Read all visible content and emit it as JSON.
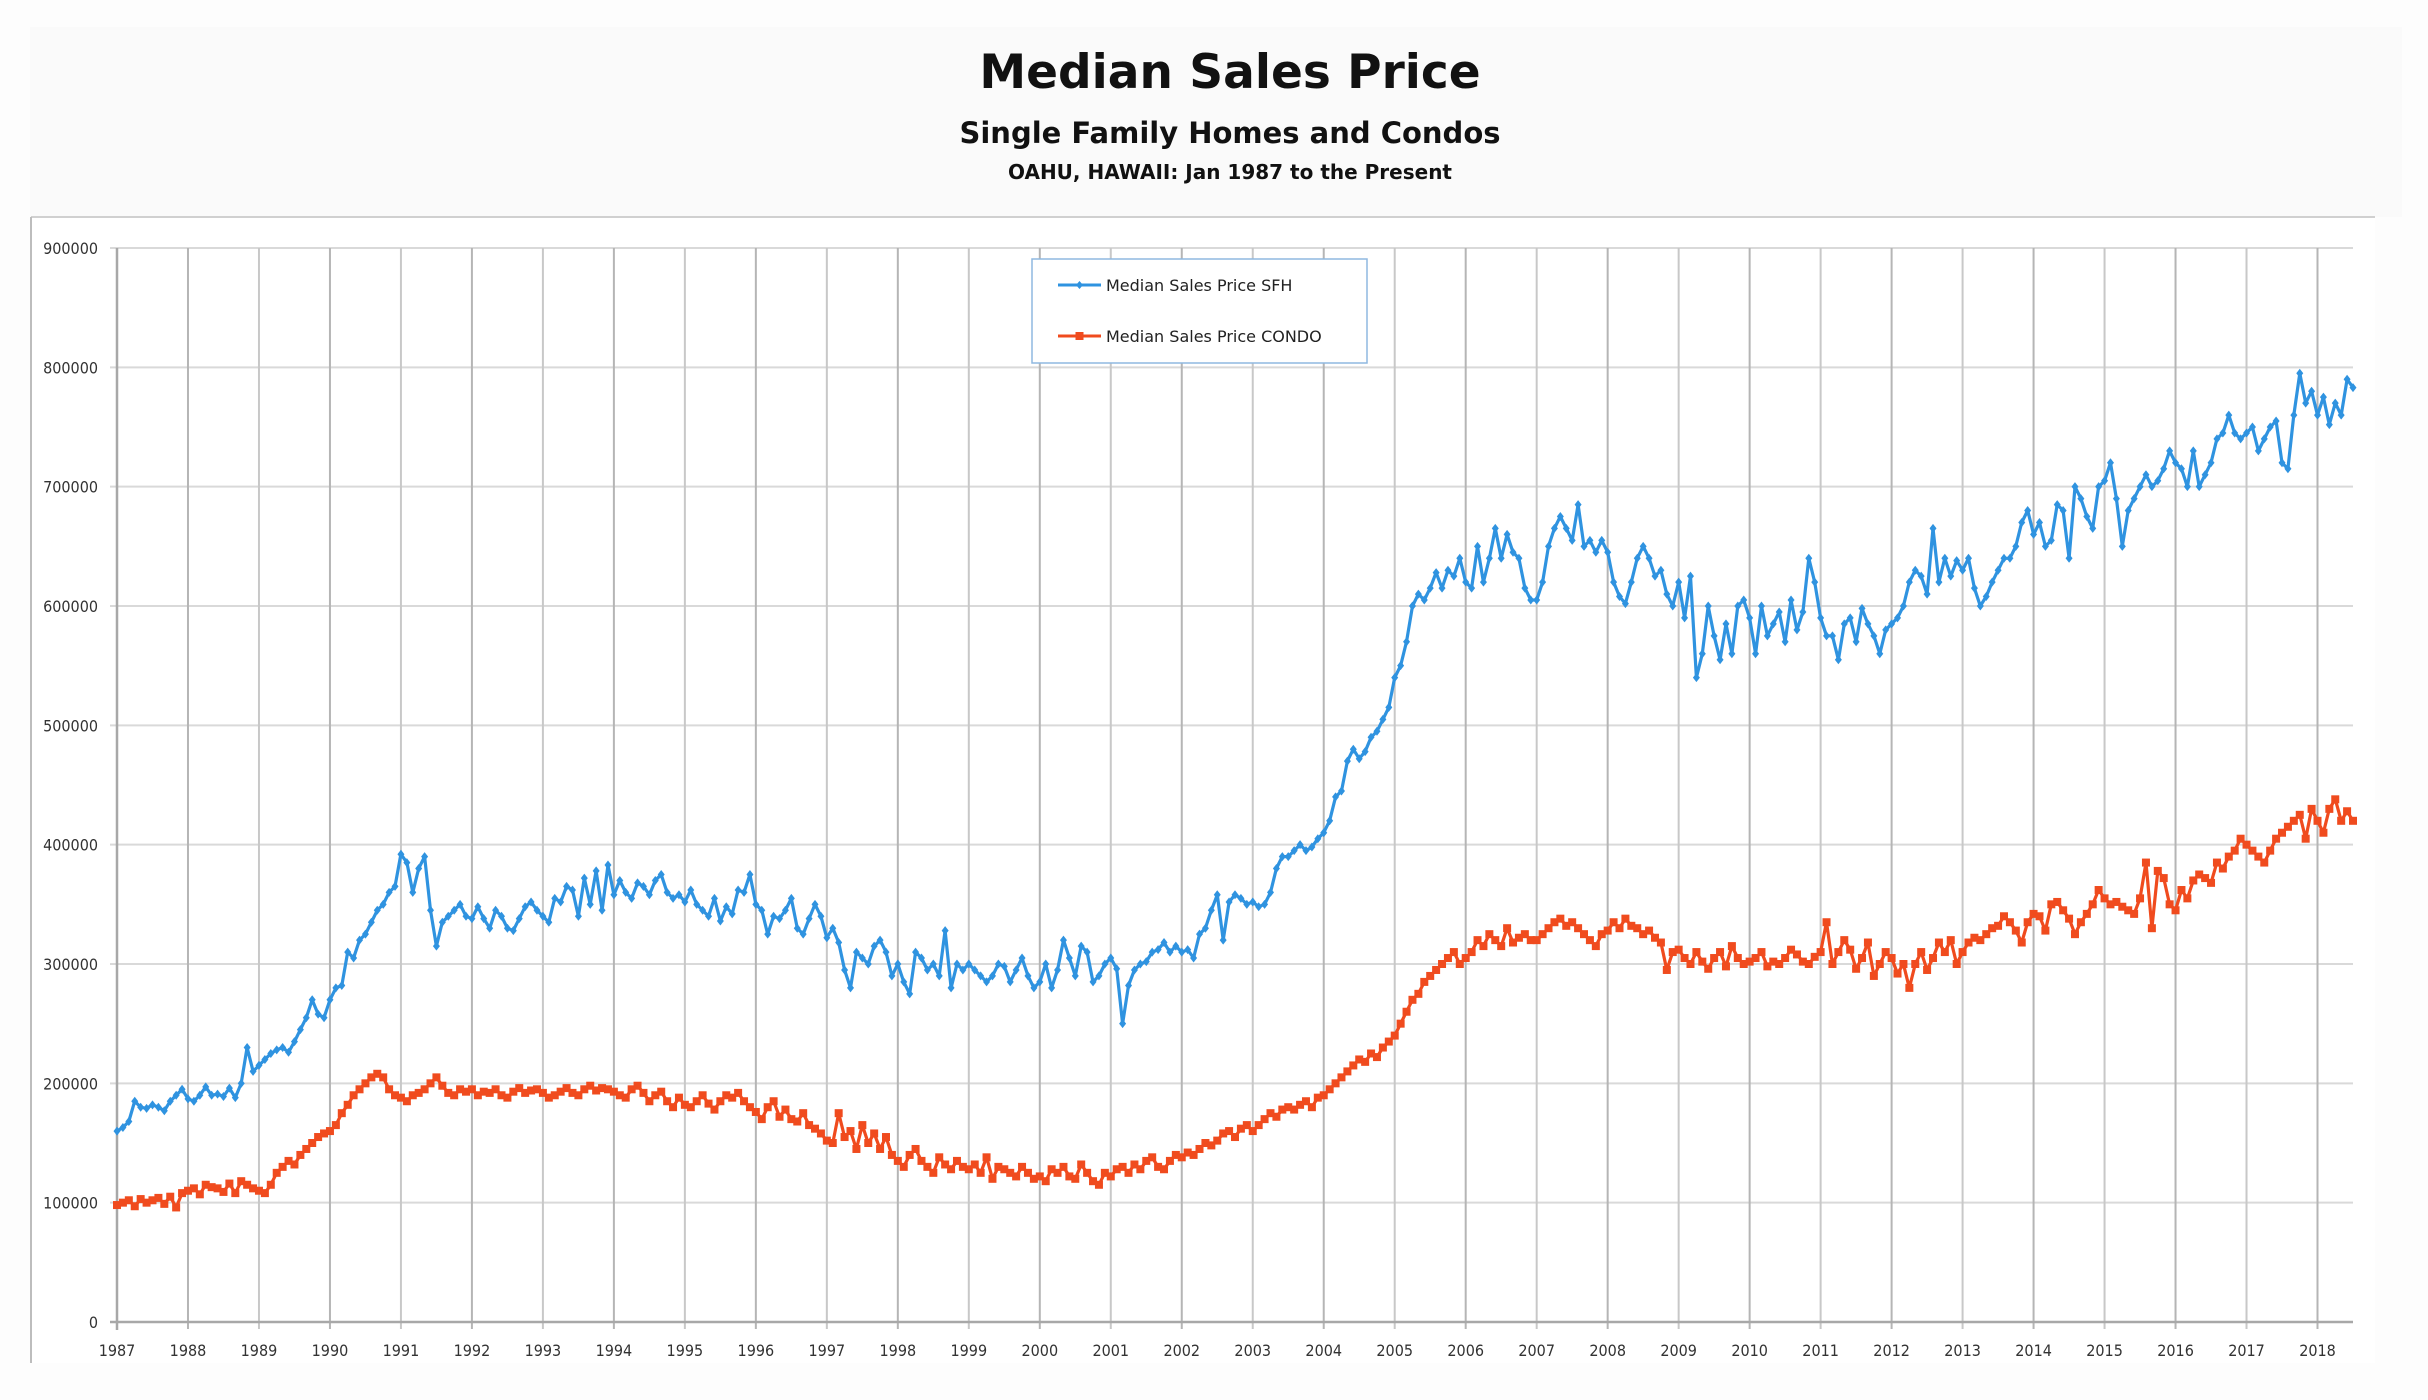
{
  "chart_data": {
    "type": "line",
    "title": "Median Sales Price",
    "subtitle": "Single Family Homes and Condos",
    "subtitle2": "OAHU, HAWAII: Jan 1987 to the Present",
    "xlabel": "",
    "ylabel": "",
    "x_start": "1987-01",
    "x_frequency": "monthly",
    "xlim": [
      1987,
      2018.5
    ],
    "ylim": [
      0,
      900000
    ],
    "yticks": [
      0,
      100000,
      200000,
      300000,
      400000,
      500000,
      600000,
      700000,
      800000,
      900000
    ],
    "ytick_labels": [
      "0",
      "100000",
      "200000",
      "300000",
      "400000",
      "500000",
      "600000",
      "700000",
      "800000",
      "900000"
    ],
    "xtick_labels": [
      "1987",
      "1988",
      "1989",
      "1990",
      "1991",
      "1992",
      "1993",
      "1994",
      "1995",
      "1996",
      "1997",
      "1998",
      "1999",
      "2000",
      "2001",
      "2002",
      "2003",
      "2004",
      "2005",
      "2006",
      "2007",
      "2008",
      "2009",
      "2010",
      "2011",
      "2012",
      "2013",
      "2014",
      "2015",
      "2016",
      "2017",
      "2018"
    ],
    "grid": true,
    "legend_position": "top-center",
    "series": [
      {
        "name": "Median Sales Price SFH",
        "color": "#2f93e0",
        "marker": "diamond",
        "values": [
          160000,
          163000,
          168000,
          185000,
          180000,
          179000,
          182000,
          180000,
          177000,
          185000,
          190000,
          195000,
          187000,
          185000,
          190000,
          197000,
          190000,
          191000,
          189000,
          196000,
          188000,
          200000,
          230000,
          210000,
          215000,
          220000,
          225000,
          228000,
          230000,
          226000,
          235000,
          245000,
          255000,
          270000,
          258000,
          255000,
          270000,
          280000,
          282000,
          310000,
          305000,
          320000,
          325000,
          335000,
          345000,
          350000,
          360000,
          365000,
          392000,
          385000,
          360000,
          380000,
          390000,
          345000,
          315000,
          335000,
          340000,
          345000,
          350000,
          340000,
          338000,
          348000,
          338000,
          330000,
          345000,
          340000,
          330000,
          328000,
          338000,
          348000,
          352000,
          345000,
          340000,
          335000,
          355000,
          352000,
          365000,
          362000,
          340000,
          372000,
          350000,
          378000,
          345000,
          383000,
          358000,
          370000,
          360000,
          355000,
          368000,
          365000,
          358000,
          370000,
          375000,
          360000,
          355000,
          358000,
          352000,
          362000,
          350000,
          345000,
          340000,
          355000,
          336000,
          348000,
          342000,
          362000,
          360000,
          375000,
          350000,
          345000,
          325000,
          340000,
          338000,
          345000,
          355000,
          330000,
          325000,
          338000,
          350000,
          340000,
          322000,
          330000,
          318000,
          295000,
          280000,
          310000,
          305000,
          300000,
          315000,
          320000,
          310000,
          290000,
          300000,
          285000,
          275000,
          310000,
          305000,
          295000,
          300000,
          290000,
          328000,
          280000,
          300000,
          295000,
          300000,
          295000,
          290000,
          285000,
          290000,
          300000,
          298000,
          285000,
          295000,
          305000,
          290000,
          280000,
          285000,
          300000,
          280000,
          295000,
          320000,
          305000,
          290000,
          315000,
          310000,
          285000,
          290000,
          300000,
          305000,
          296000,
          250000,
          282000,
          295000,
          300000,
          302000,
          310000,
          312000,
          318000,
          310000,
          315000,
          310000,
          312000,
          305000,
          325000,
          330000,
          345000,
          358000,
          320000,
          352000,
          358000,
          355000,
          350000,
          352000,
          348000,
          350000,
          360000,
          380000,
          390000,
          390000,
          395000,
          400000,
          395000,
          398000,
          405000,
          410000,
          420000,
          440000,
          445000,
          470000,
          480000,
          472000,
          478000,
          490000,
          495000,
          505000,
          515000,
          540000,
          550000,
          570000,
          600000,
          610000,
          605000,
          615000,
          628000,
          615000,
          630000,
          625000,
          640000,
          620000,
          615000,
          650000,
          620000,
          640000,
          665000,
          640000,
          660000,
          645000,
          640000,
          615000,
          605000,
          605000,
          620000,
          650000,
          665000,
          675000,
          665000,
          655000,
          685000,
          650000,
          655000,
          645000,
          655000,
          645000,
          620000,
          608000,
          602000,
          620000,
          640000,
          650000,
          640000,
          625000,
          630000,
          610000,
          600000,
          620000,
          590000,
          625000,
          540000,
          560000,
          600000,
          575000,
          555000,
          585000,
          560000,
          600000,
          605000,
          590000,
          560000,
          600000,
          575000,
          585000,
          595000,
          570000,
          605000,
          580000,
          595000,
          640000,
          620000,
          590000,
          575000,
          575000,
          555000,
          585000,
          590000,
          570000,
          598000,
          585000,
          575000,
          560000,
          580000,
          585000,
          590000,
          600000,
          620000,
          630000,
          625000,
          610000,
          665000,
          620000,
          640000,
          625000,
          638000,
          630000,
          640000,
          615000,
          600000,
          608000,
          620000,
          630000,
          640000,
          640000,
          650000,
          670000,
          680000,
          660000,
          670000,
          650000,
          655000,
          685000,
          680000,
          640000,
          700000,
          690000,
          675000,
          665000,
          700000,
          705000,
          720000,
          690000,
          650000,
          680000,
          690000,
          700000,
          710000,
          700000,
          705000,
          715000,
          730000,
          720000,
          715000,
          700000,
          730000,
          700000,
          710000,
          720000,
          740000,
          745000,
          760000,
          745000,
          740000,
          745000,
          750000,
          730000,
          740000,
          750000,
          755000,
          720000,
          715000,
          760000,
          795000,
          770000,
          780000,
          760000,
          775000,
          752000,
          770000,
          760000,
          790000,
          783000
        ]
      },
      {
        "name": "Median Sales Price CONDO",
        "color": "#f04b1e",
        "marker": "square",
        "values": [
          98000,
          100000,
          102000,
          97000,
          103000,
          100000,
          102000,
          104000,
          99000,
          105000,
          96000,
          108000,
          110000,
          112000,
          107000,
          115000,
          113000,
          112000,
          109000,
          116000,
          108000,
          118000,
          115000,
          112000,
          110000,
          108000,
          115000,
          125000,
          130000,
          135000,
          132000,
          140000,
          145000,
          150000,
          155000,
          158000,
          160000,
          165000,
          175000,
          182000,
          190000,
          195000,
          200000,
          205000,
          208000,
          205000,
          195000,
          190000,
          188000,
          185000,
          190000,
          192000,
          195000,
          200000,
          205000,
          198000,
          192000,
          190000,
          195000,
          193000,
          195000,
          190000,
          193000,
          192000,
          195000,
          190000,
          188000,
          193000,
          196000,
          192000,
          194000,
          195000,
          192000,
          188000,
          190000,
          193000,
          196000,
          192000,
          190000,
          195000,
          198000,
          194000,
          196000,
          195000,
          193000,
          190000,
          188000,
          195000,
          198000,
          192000,
          185000,
          190000,
          193000,
          185000,
          180000,
          188000,
          182000,
          180000,
          185000,
          190000,
          183000,
          178000,
          185000,
          190000,
          188000,
          192000,
          185000,
          180000,
          176000,
          170000,
          180000,
          185000,
          172000,
          178000,
          170000,
          168000,
          175000,
          165000,
          162000,
          158000,
          152000,
          150000,
          175000,
          155000,
          160000,
          145000,
          165000,
          150000,
          158000,
          145000,
          155000,
          140000,
          135000,
          130000,
          140000,
          145000,
          135000,
          130000,
          125000,
          138000,
          132000,
          128000,
          135000,
          130000,
          128000,
          132000,
          125000,
          138000,
          120000,
          130000,
          128000,
          125000,
          122000,
          130000,
          125000,
          120000,
          122000,
          118000,
          128000,
          125000,
          130000,
          122000,
          120000,
          132000,
          125000,
          118000,
          115000,
          125000,
          122000,
          128000,
          130000,
          125000,
          132000,
          128000,
          135000,
          138000,
          130000,
          128000,
          135000,
          140000,
          138000,
          142000,
          140000,
          145000,
          150000,
          148000,
          152000,
          158000,
          160000,
          155000,
          162000,
          165000,
          160000,
          165000,
          170000,
          175000,
          172000,
          178000,
          180000,
          178000,
          182000,
          185000,
          180000,
          188000,
          190000,
          195000,
          200000,
          205000,
          210000,
          215000,
          220000,
          218000,
          225000,
          222000,
          230000,
          235000,
          240000,
          250000,
          260000,
          270000,
          275000,
          285000,
          290000,
          295000,
          300000,
          305000,
          310000,
          300000,
          305000,
          310000,
          320000,
          315000,
          325000,
          320000,
          315000,
          330000,
          318000,
          322000,
          325000,
          320000,
          320000,
          325000,
          330000,
          335000,
          338000,
          332000,
          335000,
          330000,
          325000,
          320000,
          315000,
          325000,
          328000,
          335000,
          330000,
          338000,
          332000,
          330000,
          325000,
          328000,
          322000,
          318000,
          295000,
          310000,
          312000,
          305000,
          300000,
          310000,
          302000,
          296000,
          305000,
          310000,
          298000,
          315000,
          305000,
          300000,
          302000,
          305000,
          310000,
          298000,
          302000,
          300000,
          305000,
          312000,
          308000,
          302000,
          300000,
          306000,
          310000,
          335000,
          300000,
          310000,
          320000,
          312000,
          296000,
          305000,
          318000,
          290000,
          300000,
          310000,
          305000,
          292000,
          300000,
          280000,
          300000,
          310000,
          295000,
          305000,
          318000,
          310000,
          320000,
          300000,
          310000,
          318000,
          322000,
          320000,
          325000,
          330000,
          332000,
          340000,
          335000,
          328000,
          318000,
          335000,
          342000,
          340000,
          328000,
          350000,
          352000,
          345000,
          338000,
          325000,
          335000,
          342000,
          350000,
          362000,
          355000,
          350000,
          352000,
          348000,
          345000,
          342000,
          355000,
          385000,
          330000,
          378000,
          372000,
          350000,
          345000,
          362000,
          355000,
          370000,
          375000,
          372000,
          368000,
          385000,
          380000,
          390000,
          395000,
          405000,
          400000,
          395000,
          390000,
          385000,
          395000,
          405000,
          410000,
          415000,
          420000,
          425000,
          405000,
          430000,
          420000,
          410000,
          430000,
          438000,
          420000,
          428000,
          420000
        ]
      }
    ]
  }
}
